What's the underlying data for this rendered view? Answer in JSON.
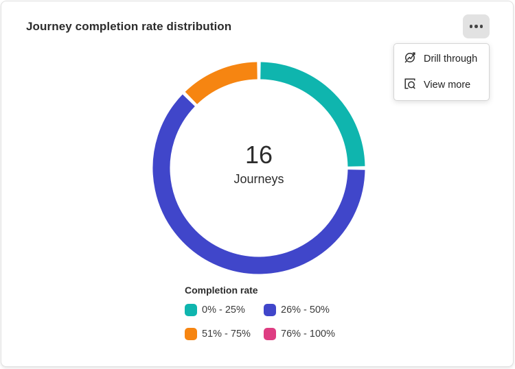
{
  "card": {
    "title": "Journey completion rate distribution"
  },
  "menu_button": {
    "icon": "ellipsis-icon"
  },
  "dropdown": {
    "items": [
      {
        "icon": "drill-through-icon",
        "label": "Drill through"
      },
      {
        "icon": "view-more-icon",
        "label": "View more"
      }
    ]
  },
  "chart_data": {
    "type": "pie",
    "donut": true,
    "title": "Journey completion rate distribution",
    "center_value": "16",
    "center_label": "Journeys",
    "total": 16,
    "categories": [
      "0% - 25%",
      "26% - 50%",
      "51% - 75%",
      "76% - 100%"
    ],
    "values": [
      4,
      10,
      2,
      0
    ],
    "colors": [
      "#0FB5AE",
      "#4046CA",
      "#F68511",
      "#DE3D82"
    ],
    "start_angle_deg": 0,
    "direction": "clockwise",
    "segment_gap_deg": 2,
    "legend_title": "Completion rate",
    "legend_position": "bottom-left"
  }
}
